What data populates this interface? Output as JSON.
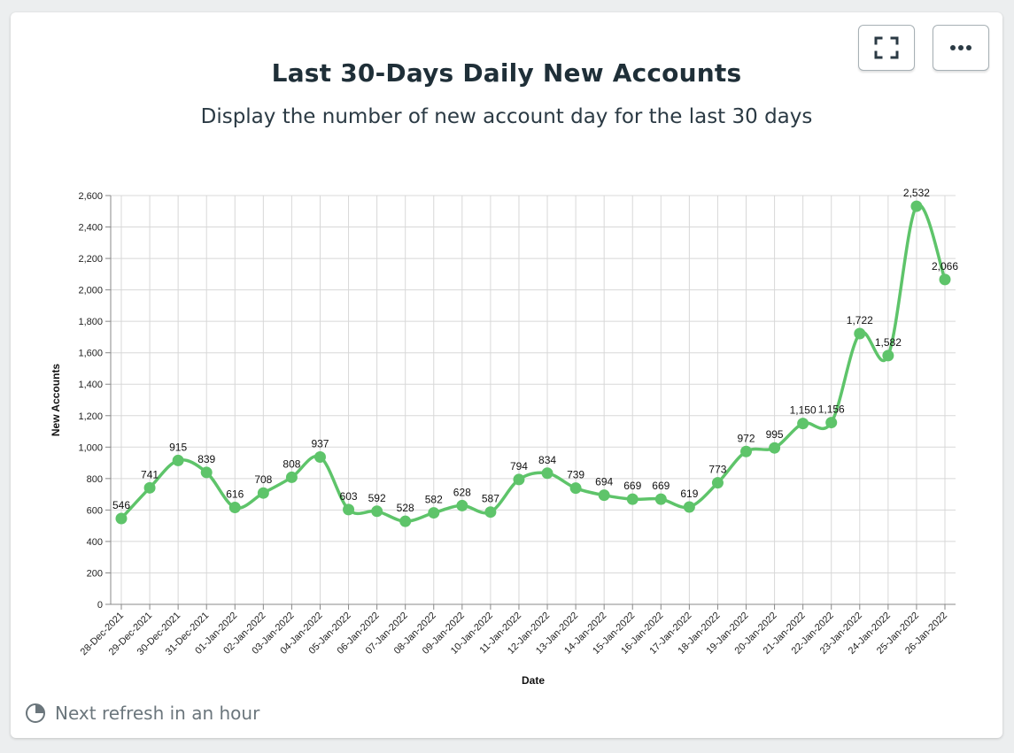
{
  "header": {
    "title": "Last 30-Days Daily New Accounts",
    "subtitle": "Display the number of new account day for the last 30 days"
  },
  "toolbar": {
    "expand_icon": "fullscreen-icon",
    "more_icon": "ellipsis-icon"
  },
  "footer": {
    "refresh_text": "Next refresh in an hour",
    "refresh_icon": "pie-clock-icon"
  },
  "colors": {
    "line": "#5ec46a",
    "grid": "#d8d8d8",
    "axis": "#888888"
  },
  "chart_data": {
    "type": "line",
    "xlabel": "Date",
    "ylabel": "New Accounts",
    "ylim": [
      0,
      2600
    ],
    "yticks": [
      0,
      200,
      400,
      600,
      800,
      1000,
      1200,
      1400,
      1600,
      1800,
      2000,
      2200,
      2400,
      2600
    ],
    "ytick_labels": [
      "0",
      "200",
      "400",
      "600",
      "800",
      "1,000",
      "1,200",
      "1,400",
      "1,600",
      "1,800",
      "2,000",
      "2,200",
      "2,400",
      "2,600"
    ],
    "grid": true,
    "legend": "none",
    "categories": [
      "28-Dec-2021",
      "29-Dec-2021",
      "30-Dec-2021",
      "31-Dec-2021",
      "01-Jan-2022",
      "02-Jan-2022",
      "03-Jan-2022",
      "04-Jan-2022",
      "05-Jan-2022",
      "06-Jan-2022",
      "07-Jan-2022",
      "08-Jan-2022",
      "09-Jan-2022",
      "10-Jan-2022",
      "11-Jan-2022",
      "12-Jan-2022",
      "13-Jan-2022",
      "14-Jan-2022",
      "15-Jan-2022",
      "16-Jan-2022",
      "17-Jan-2022",
      "18-Jan-2022",
      "19-Jan-2022",
      "20-Jan-2022",
      "21-Jan-2022",
      "22-Jan-2022",
      "23-Jan-2022",
      "24-Jan-2022",
      "25-Jan-2022",
      "26-Jan-2022"
    ],
    "values": [
      546,
      741,
      915,
      839,
      616,
      708,
      808,
      937,
      603,
      592,
      528,
      582,
      628,
      587,
      794,
      834,
      739,
      694,
      669,
      669,
      619,
      773,
      972,
      995,
      1150,
      1156,
      1722,
      1582,
      2532,
      2066
    ],
    "value_labels": [
      "546",
      "741",
      "915",
      "839",
      "616",
      "708",
      "808",
      "937",
      "603",
      "592",
      "528",
      "582",
      "628",
      "587",
      "794",
      "834",
      "739",
      "694",
      "669",
      "669",
      "619",
      "773",
      "972",
      "995",
      "1,150",
      "1,156",
      "1,722",
      "1,582",
      "2,532",
      "2,066"
    ]
  }
}
